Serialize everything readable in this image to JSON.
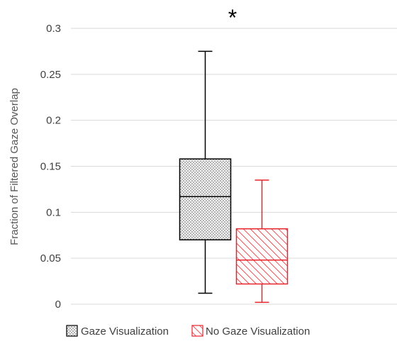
{
  "chart_data": {
    "type": "boxplot",
    "title": "",
    "xlabel": "",
    "ylabel": "Fraction of Filtered Gaze Overlap",
    "ylim": [
      0,
      0.3
    ],
    "yticks": [
      0,
      0.05,
      0.1,
      0.15,
      0.2,
      0.25,
      0.3
    ],
    "ytick_labels": [
      "0",
      "0.05",
      "0.1",
      "0.15",
      "0.2",
      "0.25",
      "0.3"
    ],
    "grid": "horizontal",
    "legend_position": "bottom",
    "annotation": "*",
    "series": [
      {
        "name": "Gaze Visualization",
        "color": "#000000",
        "fill_pattern": "dots",
        "min": 0.012,
        "q1": 0.07,
        "median": 0.117,
        "q3": 0.158,
        "max": 0.275
      },
      {
        "name": "No Gaze Visualization",
        "color": "#e8242a",
        "fill_pattern": "diagonal-hatch",
        "min": 0.002,
        "q1": 0.022,
        "median": 0.048,
        "q3": 0.082,
        "max": 0.135
      }
    ]
  }
}
